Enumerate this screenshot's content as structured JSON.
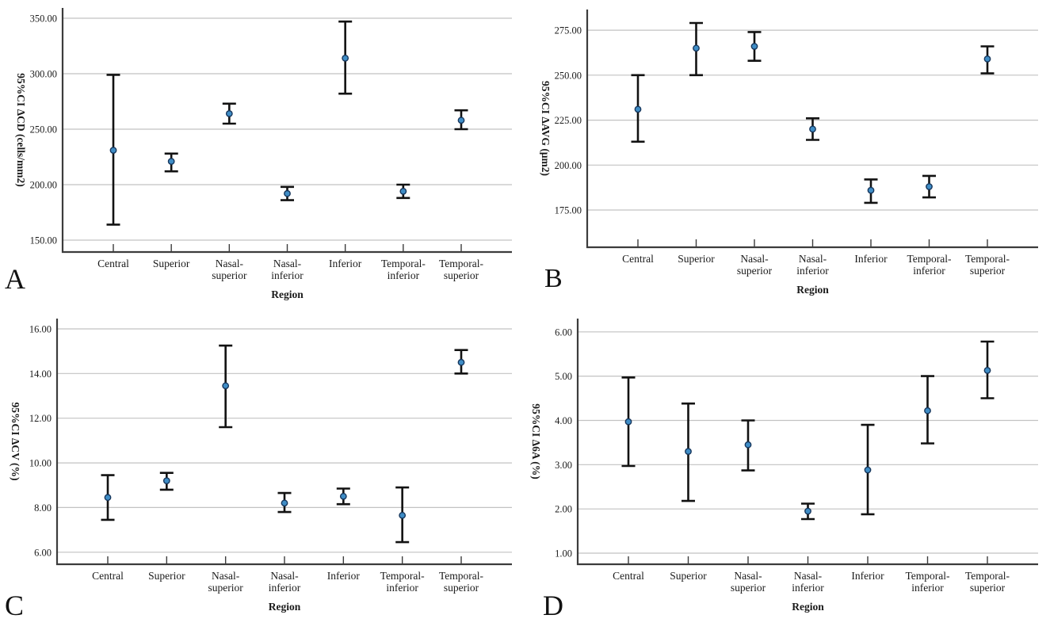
{
  "figure": {
    "description": "Four-panel error bar figure (95% confidence intervals) by corneal region",
    "xlabel": "Region",
    "categories": [
      {
        "label": "Central",
        "lines": [
          "Central"
        ]
      },
      {
        "label": "Superior",
        "lines": [
          "Superior"
        ]
      },
      {
        "label": "Nasal-superior",
        "lines": [
          "Nasal-",
          "superior"
        ]
      },
      {
        "label": "Nasal-inferior",
        "lines": [
          "Nasal-",
          "inferior"
        ]
      },
      {
        "label": "Inferior",
        "lines": [
          "Inferior"
        ]
      },
      {
        "label": "Temporal-inferior",
        "lines": [
          "Temporal-",
          "inferior"
        ]
      },
      {
        "label": "Temporal-superior",
        "lines": [
          "Temporal-",
          "superior"
        ]
      }
    ]
  },
  "colors": {
    "background": "#ffffff",
    "gridline": "#c2c2c2",
    "axis": "#3c3c3c",
    "errorbar": "#121212",
    "dot_fill": "#3f8dc6",
    "dot_stroke": "#16365c",
    "text": "#1a1a1a"
  },
  "chart_data": [
    {
      "type": "errorbar",
      "panel_letter": "A",
      "ylabel": "95%CI ΔCD (cells/mm2)",
      "xlabel": "Region",
      "ylim": [
        139.3,
        359.3
      ],
      "grid": true,
      "yticks": [
        {
          "value": 150,
          "label": "150.00"
        },
        {
          "value": 200,
          "label": "200.00"
        },
        {
          "value": 250,
          "label": "250.00"
        },
        {
          "value": 300,
          "label": "300.00"
        },
        {
          "value": 350,
          "label": "350.00"
        }
      ],
      "points": [
        {
          "category": "Central",
          "mean": 231,
          "ci_low": 164,
          "ci_high": 299
        },
        {
          "category": "Superior",
          "mean": 221,
          "ci_low": 212,
          "ci_high": 228
        },
        {
          "category": "Nasal-superior",
          "mean": 264,
          "ci_low": 255,
          "ci_high": 273
        },
        {
          "category": "Nasal-inferior",
          "mean": 192,
          "ci_low": 186,
          "ci_high": 198
        },
        {
          "category": "Inferior",
          "mean": 314,
          "ci_low": 282,
          "ci_high": 347
        },
        {
          "category": "Temporal-inferior",
          "mean": 194,
          "ci_low": 188,
          "ci_high": 200
        },
        {
          "category": "Temporal-superior",
          "mean": 258,
          "ci_low": 250,
          "ci_high": 267
        }
      ]
    },
    {
      "type": "errorbar",
      "panel_letter": "B",
      "ylabel": "95%CI ΔAVG (μm2)",
      "xlabel": "Region",
      "ylim": [
        154.3,
        286.5
      ],
      "grid": true,
      "yticks": [
        {
          "value": 175,
          "label": "175.00"
        },
        {
          "value": 200,
          "label": "200.00"
        },
        {
          "value": 225,
          "label": "225.00"
        },
        {
          "value": 250,
          "label": "250.00"
        },
        {
          "value": 275,
          "label": "275.00"
        }
      ],
      "points": [
        {
          "category": "Central",
          "mean": 231,
          "ci_low": 213,
          "ci_high": 250
        },
        {
          "category": "Superior",
          "mean": 265,
          "ci_low": 250,
          "ci_high": 279
        },
        {
          "category": "Nasal-superior",
          "mean": 266,
          "ci_low": 258,
          "ci_high": 274
        },
        {
          "category": "Nasal-inferior",
          "mean": 220,
          "ci_low": 214,
          "ci_high": 226
        },
        {
          "category": "Inferior",
          "mean": 186,
          "ci_low": 179,
          "ci_high": 192
        },
        {
          "category": "Temporal-inferior",
          "mean": 188,
          "ci_low": 182,
          "ci_high": 194
        },
        {
          "category": "Temporal-superior",
          "mean": 259,
          "ci_low": 251,
          "ci_high": 266
        }
      ]
    },
    {
      "type": "errorbar",
      "panel_letter": "C",
      "ylabel": "95%CI ΔCV (%)",
      "xlabel": "Region",
      "ylim": [
        5.46,
        16.46
      ],
      "grid": true,
      "yticks": [
        {
          "value": 6,
          "label": "6.00"
        },
        {
          "value": 8,
          "label": "8.00"
        },
        {
          "value": 10,
          "label": "10.00"
        },
        {
          "value": 12,
          "label": "12.00"
        },
        {
          "value": 14,
          "label": "14.00"
        },
        {
          "value": 16,
          "label": "16.00"
        }
      ],
      "points": [
        {
          "category": "Central",
          "mean": 8.45,
          "ci_low": 7.45,
          "ci_high": 9.45
        },
        {
          "category": "Superior",
          "mean": 9.2,
          "ci_low": 8.8,
          "ci_high": 9.55
        },
        {
          "category": "Nasal-superior",
          "mean": 13.45,
          "ci_low": 11.6,
          "ci_high": 15.25
        },
        {
          "category": "Nasal-inferior",
          "mean": 8.2,
          "ci_low": 7.8,
          "ci_high": 8.65
        },
        {
          "category": "Inferior",
          "mean": 8.5,
          "ci_low": 8.15,
          "ci_high": 8.85
        },
        {
          "category": "Temporal-inferior",
          "mean": 7.65,
          "ci_low": 6.45,
          "ci_high": 8.9
        },
        {
          "category": "Temporal-superior",
          "mean": 14.5,
          "ci_low": 14.0,
          "ci_high": 15.05
        }
      ]
    },
    {
      "type": "errorbar",
      "panel_letter": "D",
      "ylabel": "95%CI Δ6A (%)",
      "xlabel": "Region",
      "ylim": [
        0.75,
        6.3
      ],
      "grid": true,
      "yticks": [
        {
          "value": 1,
          "label": "1.00"
        },
        {
          "value": 2,
          "label": "2.00"
        },
        {
          "value": 3,
          "label": "3.00"
        },
        {
          "value": 4,
          "label": "4.00"
        },
        {
          "value": 5,
          "label": "5.00"
        },
        {
          "value": 6,
          "label": "6.00"
        }
      ],
      "points": [
        {
          "category": "Central",
          "mean": 3.97,
          "ci_low": 2.97,
          "ci_high": 4.97
        },
        {
          "category": "Superior",
          "mean": 3.3,
          "ci_low": 2.18,
          "ci_high": 4.38
        },
        {
          "category": "Nasal-superior",
          "mean": 3.45,
          "ci_low": 2.87,
          "ci_high": 4.0
        },
        {
          "category": "Nasal-inferior",
          "mean": 1.95,
          "ci_low": 1.77,
          "ci_high": 2.12
        },
        {
          "category": "Inferior",
          "mean": 2.88,
          "ci_low": 1.88,
          "ci_high": 3.9
        },
        {
          "category": "Temporal-inferior",
          "mean": 4.22,
          "ci_low": 3.48,
          "ci_high": 5.0
        },
        {
          "category": "Temporal-superior",
          "mean": 5.13,
          "ci_low": 4.5,
          "ci_high": 5.78
        }
      ]
    }
  ]
}
